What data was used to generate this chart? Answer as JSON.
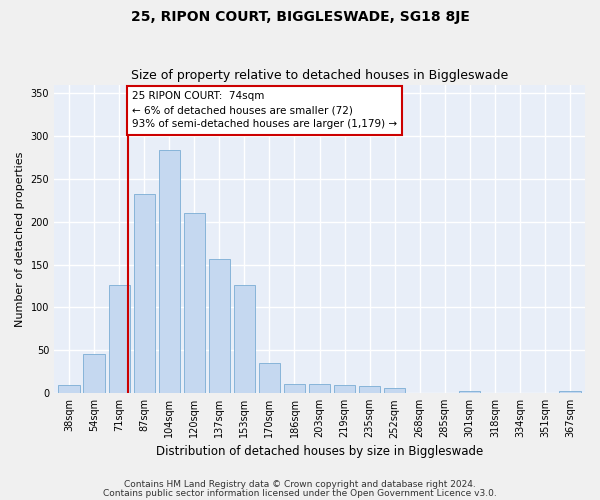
{
  "title1": "25, RIPON COURT, BIGGLESWADE, SG18 8JE",
  "title2": "Size of property relative to detached houses in Biggleswade",
  "xlabel": "Distribution of detached houses by size in Biggleswade",
  "ylabel": "Number of detached properties",
  "categories": [
    "38sqm",
    "54sqm",
    "71sqm",
    "87sqm",
    "104sqm",
    "120sqm",
    "137sqm",
    "153sqm",
    "170sqm",
    "186sqm",
    "203sqm",
    "219sqm",
    "235sqm",
    "252sqm",
    "268sqm",
    "285sqm",
    "301sqm",
    "318sqm",
    "334sqm",
    "351sqm",
    "367sqm"
  ],
  "values": [
    10,
    46,
    126,
    232,
    284,
    210,
    157,
    126,
    35,
    11,
    11,
    10,
    8,
    6,
    0,
    0,
    3,
    0,
    0,
    0,
    3
  ],
  "bar_color": "#c5d8f0",
  "bar_edge_color": "#7aadd4",
  "ylim": [
    0,
    360
  ],
  "yticks": [
    0,
    50,
    100,
    150,
    200,
    250,
    300,
    350
  ],
  "vline_x": 2.36,
  "vline_color": "#cc0000",
  "annotation_text": "25 RIPON COURT:  74sqm\n← 6% of detached houses are smaller (72)\n93% of semi-detached houses are larger (1,179) →",
  "annotation_box_color": "#ffffff",
  "annotation_box_edge": "#cc0000",
  "footer1": "Contains HM Land Registry data © Crown copyright and database right 2024.",
  "footer2": "Contains public sector information licensed under the Open Government Licence v3.0.",
  "background_color": "#e8eef8",
  "grid_color": "#ffffff",
  "title1_fontsize": 10,
  "title2_fontsize": 9,
  "tick_fontsize": 7,
  "ylabel_fontsize": 8,
  "xlabel_fontsize": 8.5,
  "footer_fontsize": 6.5
}
